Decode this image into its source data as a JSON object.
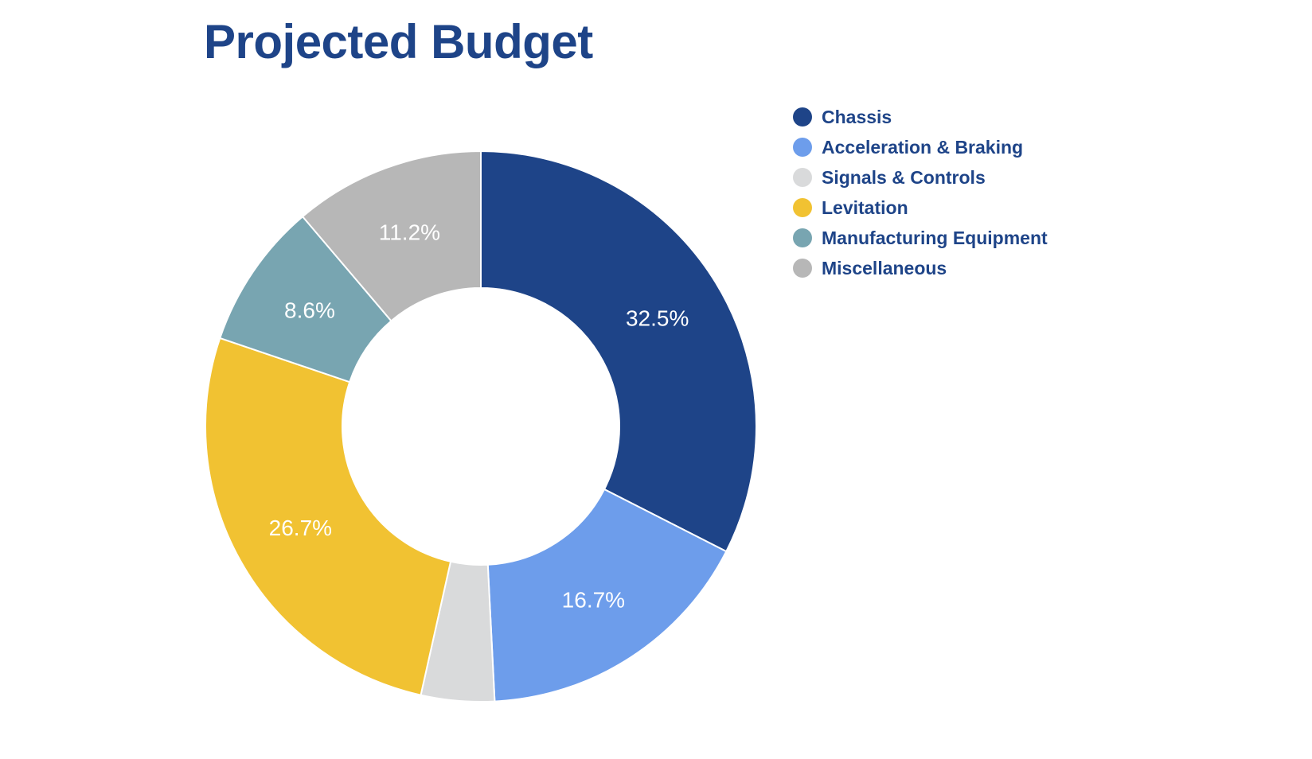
{
  "chart_data": {
    "type": "pie",
    "title": "Projected Budget",
    "donut": true,
    "legend_position": "right",
    "categories": [
      "Chassis",
      "Acceleration & Braking",
      "Signals & Controls",
      "Levitation",
      "Manufacturing Equipment",
      "Miscellaneous"
    ],
    "values": [
      32.5,
      16.7,
      4.3,
      26.7,
      8.6,
      11.2
    ],
    "data_labels": [
      "32.5%",
      "16.7%",
      "",
      "26.7%",
      "8.6%",
      "11.2%"
    ],
    "colors": [
      "#1e4488",
      "#6d9deb",
      "#d9dadb",
      "#f1c232",
      "#78a5b1",
      "#b7b7b7"
    ]
  }
}
